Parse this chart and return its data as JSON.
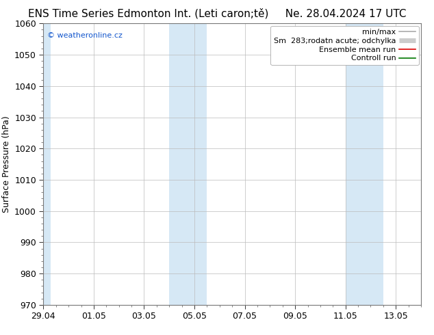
{
  "title": "ENS Time Series Edmonton Int. (Leti caron;tě)     Ne. 28.04.2024 17 UTC",
  "ylabel": "Surface Pressure (hPa)",
  "ylim": [
    970,
    1060
  ],
  "yticks": [
    970,
    980,
    990,
    1000,
    1010,
    1020,
    1030,
    1040,
    1050,
    1060
  ],
  "xlim": [
    0,
    15
  ],
  "xtick_labels": [
    "29.04",
    "01.05",
    "03.05",
    "05.05",
    "07.05",
    "09.05",
    "11.05",
    "13.05"
  ],
  "xtick_positions": [
    0,
    2,
    4,
    6,
    8,
    10,
    12,
    14
  ],
  "shaded_bands": [
    {
      "x_start": -0.1,
      "x_end": 0.3
    },
    {
      "x_start": 5.0,
      "x_end": 6.5
    },
    {
      "x_start": 12.0,
      "x_end": 13.5
    }
  ],
  "shade_color": "#d6e8f5",
  "watermark": "© weatheronline.cz",
  "background_color": "#ffffff",
  "grid_color": "#bbbbbb",
  "title_fontsize": 11,
  "tick_fontsize": 9,
  "ylabel_fontsize": 9,
  "legend_fontsize": 8
}
